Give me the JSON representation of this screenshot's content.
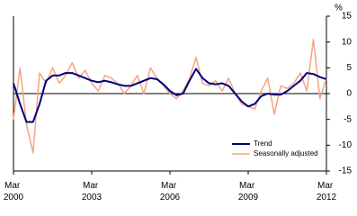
{
  "chart_data": {
    "type": "line",
    "ylabel": "%",
    "categories": [
      "Mar 2000",
      null,
      null,
      null,
      null,
      null,
      null,
      null,
      null,
      null,
      null,
      null,
      "Mar 2003",
      null,
      null,
      null,
      null,
      null,
      null,
      null,
      null,
      null,
      null,
      null,
      "Mar 2006",
      null,
      null,
      null,
      null,
      null,
      null,
      null,
      null,
      null,
      null,
      null,
      "Mar 2009",
      null,
      null,
      null,
      null,
      null,
      null,
      null,
      null,
      null,
      null,
      null,
      "Mar 2012"
    ],
    "series": [
      {
        "name": "Trend",
        "color": "#000080",
        "values": [
          2,
          -2,
          -5.5,
          -5.5,
          -2,
          2.5,
          3.5,
          3.5,
          4,
          4,
          3.5,
          3,
          2.5,
          2.2,
          2.5,
          2.2,
          1.8,
          1.5,
          1.5,
          2,
          2.5,
          3,
          2.8,
          1.8,
          0.5,
          -0.3,
          0,
          2.5,
          4.8,
          3,
          2,
          1.8,
          2,
          1.5,
          0,
          -1.5,
          -2.5,
          -2,
          -0.5,
          0,
          -0.2,
          -0.2,
          0.5,
          1.5,
          2.5,
          4,
          3.8,
          3.2,
          2.8
        ]
      },
      {
        "name": "Seasonally adjusted",
        "color": "#f4a582",
        "values": [
          -5,
          5,
          -6,
          -11.5,
          4,
          2,
          5,
          2,
          3.5,
          6,
          3,
          4.5,
          2,
          0.5,
          3.5,
          3,
          2,
          0,
          1.5,
          3.5,
          0,
          5,
          3,
          1.5,
          0,
          -1,
          0.5,
          3,
          7,
          2,
          1.5,
          2.5,
          0.5,
          3,
          0,
          -2,
          -2.5,
          -3,
          0.5,
          3,
          -4,
          1.5,
          1,
          2,
          4,
          0.5,
          10.5,
          -1,
          3
        ]
      }
    ],
    "ylim": [
      -15,
      15
    ],
    "yticks": [
      -15,
      -10,
      -5,
      0,
      5,
      10,
      15
    ],
    "legend": "lower right"
  }
}
